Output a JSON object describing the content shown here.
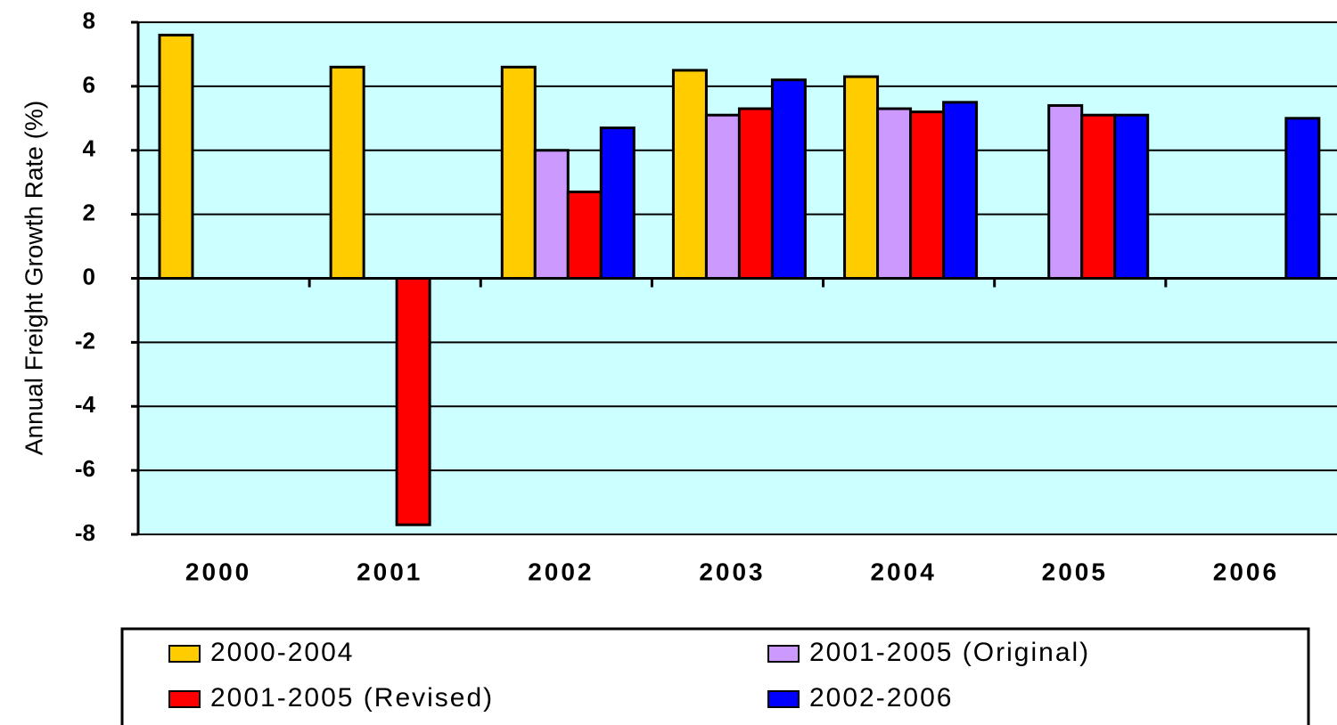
{
  "chart_data": {
    "type": "bar",
    "y_label": "Annual Freight Growth Rate (%)",
    "categories": [
      "2000",
      "2001",
      "2002",
      "2003",
      "2004",
      "2005",
      "2006"
    ],
    "series": [
      {
        "name": "2000-2004",
        "color": "#ffcc00",
        "values": [
          7.6,
          6.6,
          6.6,
          6.5,
          6.3,
          null,
          null
        ]
      },
      {
        "name": "2001-2005 (Original)",
        "color": "#cc99ff",
        "values": [
          null,
          null,
          4.0,
          5.1,
          5.3,
          5.4,
          null
        ]
      },
      {
        "name": "2001-2005 (Revised)",
        "color": "#ff0000",
        "values": [
          null,
          -7.7,
          2.7,
          5.3,
          5.2,
          5.1,
          null
        ]
      },
      {
        "name": "2002-2006",
        "color": "#0000ff",
        "values": [
          null,
          null,
          4.7,
          6.2,
          5.5,
          5.1,
          5.0
        ]
      }
    ],
    "ylim": [
      -8,
      8
    ],
    "yticks": [
      -8,
      -6,
      -4,
      -2,
      0,
      2,
      4,
      6,
      8
    ],
    "grid": true,
    "plot_background": "#ccffff"
  }
}
